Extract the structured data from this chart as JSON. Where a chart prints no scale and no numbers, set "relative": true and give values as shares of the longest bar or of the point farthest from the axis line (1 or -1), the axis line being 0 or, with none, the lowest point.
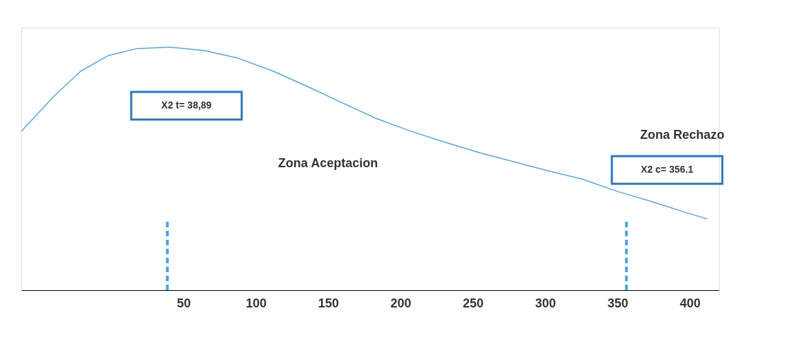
{
  "chart_data": {
    "type": "line",
    "relative": true,
    "x": [
      -62,
      -40,
      -21,
      -2,
      17,
      40,
      64,
      88,
      112,
      136,
      160,
      183,
      207,
      231,
      255,
      279,
      302,
      326,
      350,
      374,
      398,
      412
    ],
    "series": [
      {
        "color": "#5ba3dc",
        "values": [
          0.654,
          0.795,
          0.901,
          0.965,
          0.993,
          1.0,
          0.986,
          0.954,
          0.901,
          0.837,
          0.77,
          0.707,
          0.654,
          0.608,
          0.565,
          0.527,
          0.491,
          0.456,
          0.406,
          0.364,
          0.318,
          0.293
        ]
      }
    ],
    "xlim": [
      -62,
      420
    ],
    "xticks": [
      50,
      100,
      150,
      200,
      250,
      300,
      350,
      400
    ],
    "ref_lines": [
      {
        "axis": "x",
        "value": 38.89,
        "color": "#4aa3df",
        "line_style": "dashed"
      },
      {
        "axis": "x",
        "value": 356.1,
        "color": "#4aa3df",
        "line_style": "dashed"
      }
    ],
    "annotations": [
      "X2 t= 38,89",
      "Zona Aceptacion",
      "Zona Rechazo",
      "X2 c= 356.1"
    ],
    "grid": false,
    "line_style": "solid",
    "marker": "none"
  }
}
